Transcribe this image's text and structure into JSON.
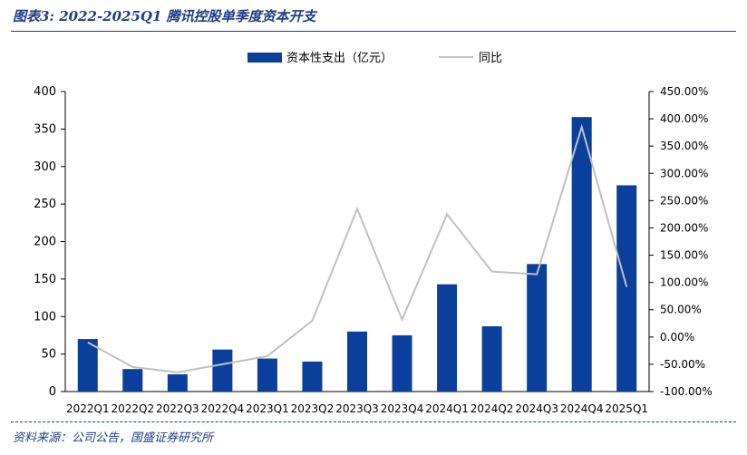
{
  "figure": {
    "header": "图表3: 2022-2025Q1 腾讯控股单季度资本开支",
    "source": "资料来源：公司公告，国盛证券研究所"
  },
  "colors": {
    "bar": "#0a3f9c",
    "line": "#c0c0c0",
    "accent": "#1f3c88"
  },
  "chart_data": {
    "type": "bar",
    "title": "",
    "categories": [
      "2022Q1",
      "2022Q2",
      "2022Q3",
      "2022Q4",
      "2023Q1",
      "2023Q2",
      "2023Q3",
      "2023Q4",
      "2024Q1",
      "2024Q2",
      "2024Q3",
      "2024Q4",
      "2025Q1"
    ],
    "series": [
      {
        "name": "资本性支出（亿元）",
        "type": "bar",
        "axis": "left",
        "values": [
          70,
          30,
          23,
          56,
          44,
          40,
          80,
          75,
          143,
          87,
          170,
          366,
          275
        ]
      },
      {
        "name": "同比",
        "type": "line",
        "axis": "right",
        "values": [
          -10,
          -55,
          -65,
          -50,
          -35,
          30,
          235,
          32,
          225,
          120,
          115,
          385,
          92
        ]
      }
    ],
    "left_axis": {
      "ylim": [
        0,
        400
      ],
      "ticks": [
        "0",
        "50",
        "100",
        "150",
        "200",
        "250",
        "300",
        "350",
        "400"
      ]
    },
    "right_axis": {
      "ylim": [
        -100,
        450
      ],
      "ticks": [
        "-100.00%",
        "-50.00%",
        "0.00%",
        "50.00%",
        "100.00%",
        "150.00%",
        "200.00%",
        "250.00%",
        "300.00%",
        "350.00%",
        "400.00%",
        "450.00%"
      ]
    },
    "legend_position": "top-center",
    "grid": false
  }
}
